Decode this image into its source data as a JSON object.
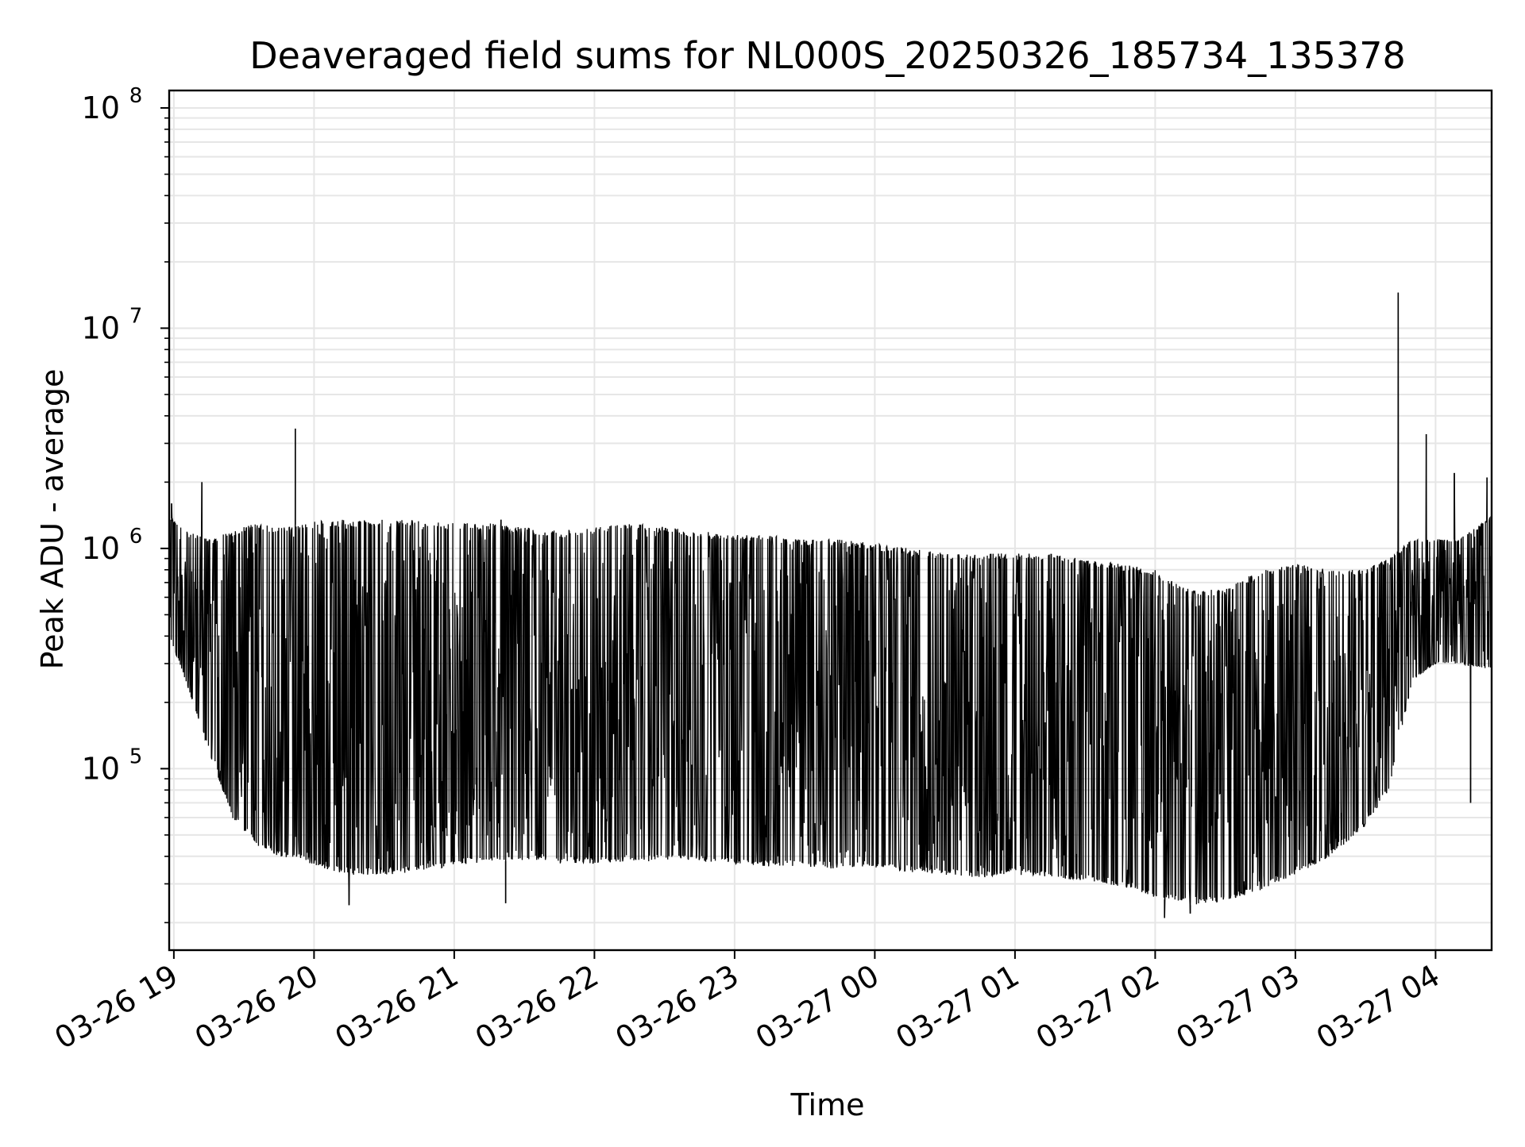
{
  "chart_data": {
    "type": "line",
    "title": "Deaveraged field sums for NL000S_20250326_185734_135378",
    "xlabel": "Time",
    "ylabel": "Peak ADU - average",
    "y_scale": "log",
    "ylim": [
      15000,
      120000000
    ],
    "xlim": [
      "2025-03-26 18:58",
      "2025-03-27 04:24"
    ],
    "x_tick_labels": [
      "03-26 19",
      "03-26 20",
      "03-26 21",
      "03-26 22",
      "03-26 23",
      "03-27 00",
      "03-27 01",
      "03-27 02",
      "03-27 03",
      "03-27 04"
    ],
    "y_tick_labels": [
      {
        "base": "10",
        "exp": "5",
        "value": 100000
      },
      {
        "base": "10",
        "exp": "6",
        "value": 1000000
      },
      {
        "base": "10",
        "exp": "7",
        "value": 10000000
      },
      {
        "base": "10",
        "exp": "8",
        "value": 100000000
      }
    ],
    "grid": true,
    "series": [
      {
        "color": "#000000",
        "envelope": {
          "x": [
            "2025-03-26 18:58",
            "2025-03-26 19:05",
            "2025-03-26 19:15",
            "2025-03-26 19:25",
            "2025-03-26 19:35",
            "2025-03-26 19:45",
            "2025-03-26 19:55",
            "2025-03-26 20:05",
            "2025-03-26 20:15",
            "2025-03-26 20:30",
            "2025-03-26 20:45",
            "2025-03-26 21:00",
            "2025-03-26 21:15",
            "2025-03-26 21:30",
            "2025-03-26 21:45",
            "2025-03-26 22:00",
            "2025-03-26 22:15",
            "2025-03-26 22:30",
            "2025-03-26 22:45",
            "2025-03-26 23:00",
            "2025-03-26 23:15",
            "2025-03-26 23:30",
            "2025-03-26 23:45",
            "2025-03-27 00:00",
            "2025-03-27 00:15",
            "2025-03-27 00:30",
            "2025-03-27 00:45",
            "2025-03-27 01:00",
            "2025-03-27 01:15",
            "2025-03-27 01:30",
            "2025-03-27 01:45",
            "2025-03-27 02:00",
            "2025-03-27 02:15",
            "2025-03-27 02:30",
            "2025-03-27 02:45",
            "2025-03-27 03:00",
            "2025-03-27 03:15",
            "2025-03-27 03:30",
            "2025-03-27 03:40",
            "2025-03-27 03:50",
            "2025-03-27 04:00",
            "2025-03-27 04:10",
            "2025-03-27 04:24"
          ],
          "high": [
            1400000,
            1200000,
            1100000,
            1200000,
            1300000,
            1250000,
            1300000,
            1350000,
            1350000,
            1350000,
            1350000,
            1300000,
            1300000,
            1250000,
            1200000,
            1250000,
            1300000,
            1250000,
            1200000,
            1150000,
            1150000,
            1100000,
            1100000,
            1050000,
            1000000,
            950000,
            950000,
            950000,
            950000,
            900000,
            850000,
            800000,
            650000,
            650000,
            800000,
            850000,
            800000,
            800000,
            900000,
            1100000,
            1100000,
            1100000,
            1400000
          ],
          "low": [
            400000,
            250000,
            120000,
            60000,
            45000,
            40000,
            38000,
            35000,
            33000,
            33000,
            34000,
            36000,
            38000,
            38000,
            37000,
            37000,
            38000,
            38000,
            38000,
            37000,
            36000,
            36000,
            35000,
            35000,
            34000,
            33000,
            32000,
            33000,
            32000,
            31000,
            29000,
            26000,
            24000,
            25000,
            28000,
            33000,
            40000,
            55000,
            80000,
            250000,
            300000,
            300000,
            280000
          ]
        },
        "spikes": [
          {
            "x": "2025-03-26 18:59",
            "y": 1600000
          },
          {
            "x": "2025-03-26 19:12",
            "y": 2000000
          },
          {
            "x": "2025-03-26 19:52",
            "y": 3500000
          },
          {
            "x": "2025-03-26 21:20",
            "y": 1350000
          },
          {
            "x": "2025-03-27 03:44",
            "y": 14500000
          },
          {
            "x": "2025-03-27 03:56",
            "y": 3300000
          },
          {
            "x": "2025-03-27 04:08",
            "y": 2200000
          },
          {
            "x": "2025-03-27 04:22",
            "y": 2100000
          }
        ],
        "dips": [
          {
            "x": "2025-03-26 20:15",
            "y": 24000
          },
          {
            "x": "2025-03-26 21:22",
            "y": 24500
          },
          {
            "x": "2025-03-27 02:04",
            "y": 21000
          },
          {
            "x": "2025-03-27 02:15",
            "y": 22000
          },
          {
            "x": "2025-03-27 04:15",
            "y": 70000
          }
        ]
      }
    ]
  }
}
